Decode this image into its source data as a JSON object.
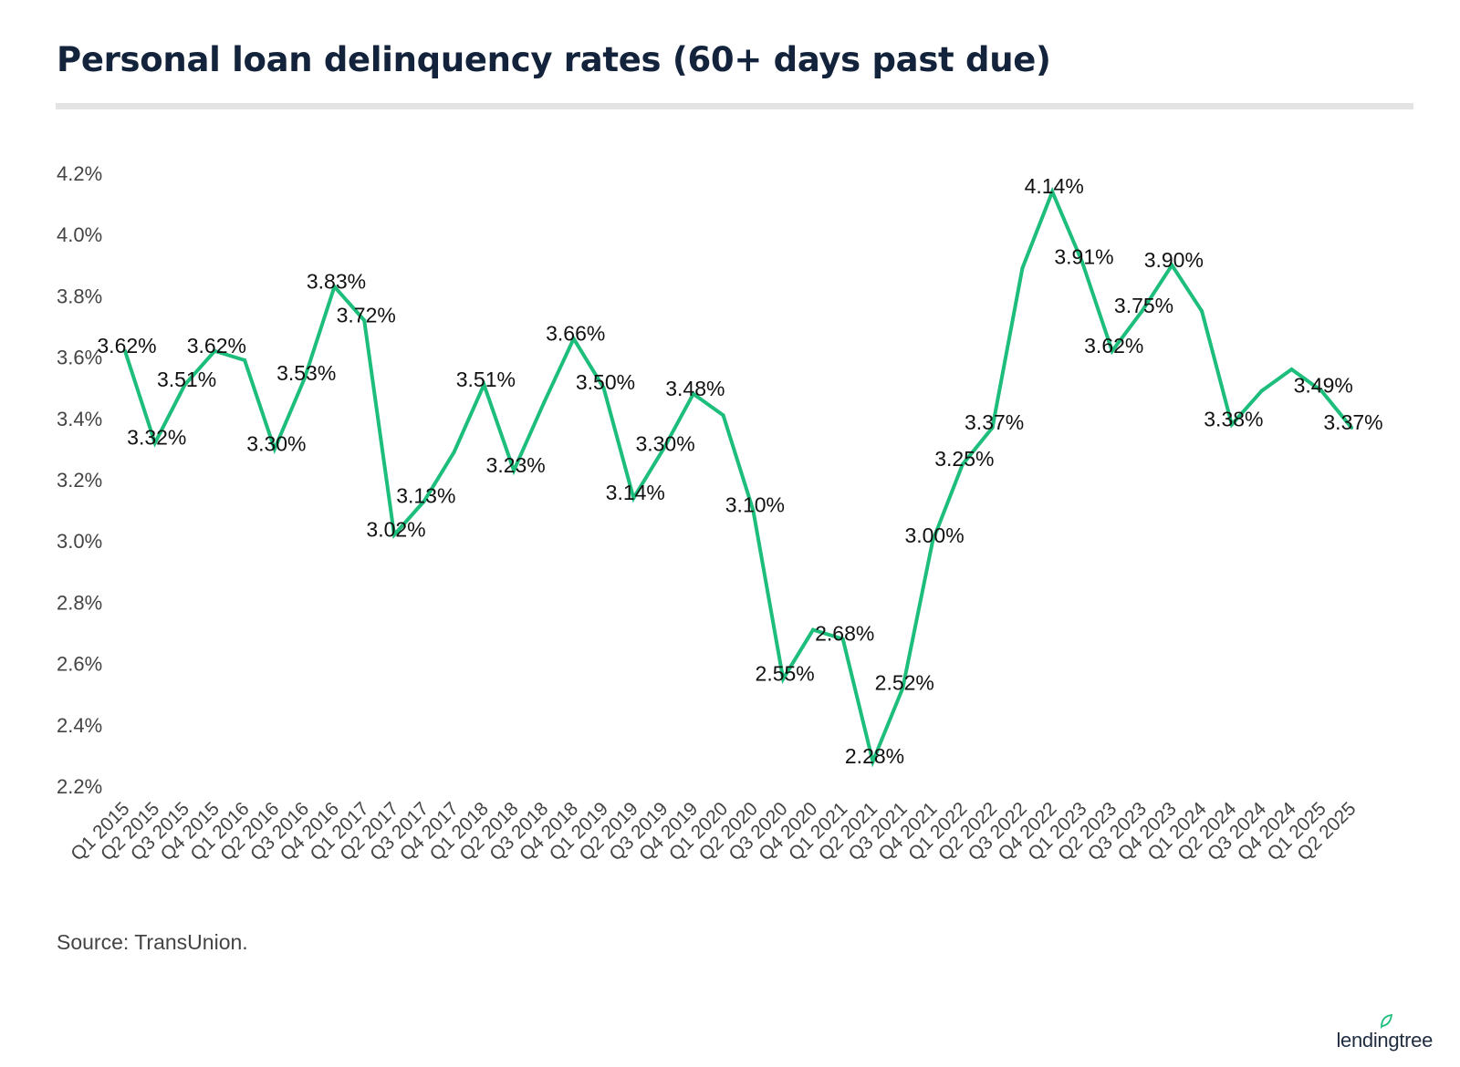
{
  "title": "Personal loan delinquency rates (60+ days past due)",
  "source": "Source: TransUnion.",
  "brand": "lendingtree",
  "icons": {
    "brand_leaf": "leaf-icon"
  },
  "colors": {
    "line": "#1dbd7c",
    "title": "#13233b",
    "rule": "#e3e3e3",
    "text": "#222222"
  },
  "chart_data": {
    "type": "line",
    "title": "Personal loan delinquency rates (60+ days past due)",
    "xlabel": "",
    "ylabel": "",
    "ylim": [
      2.2,
      4.2
    ],
    "yticks": [
      "4.2%",
      "4.0%",
      "3.8%",
      "3.6%",
      "3.4%",
      "3.2%",
      "3.0%",
      "2.8%",
      "2.6%",
      "2.4%",
      "2.2%"
    ],
    "ytick_values": [
      4.2,
      4.0,
      3.8,
      3.6,
      3.4,
      3.2,
      3.0,
      2.8,
      2.6,
      2.4,
      2.2
    ],
    "grid": false,
    "legend": "none",
    "categories": [
      "Q1 2015",
      "Q2 2015",
      "Q3 2015",
      "Q4 2015",
      "Q1 2016",
      "Q2 2016",
      "Q3 2016",
      "Q4 2016",
      "Q1 2017",
      "Q2 2017",
      "Q3 2017",
      "Q4 2017",
      "Q1 2018",
      "Q2 2018",
      "Q3 2018",
      "Q4 2018",
      "Q1 2019",
      "Q2 2019",
      "Q3 2019",
      "Q4 2019",
      "Q1 2020",
      "Q2 2020",
      "Q3 2020",
      "Q4 2020",
      "Q1 2021",
      "Q2 2021",
      "Q3 2021",
      "Q4 2021",
      "Q1 2022",
      "Q2 2022",
      "Q3 2022",
      "Q4 2022",
      "Q1 2023",
      "Q2 2023",
      "Q3 2023",
      "Q4 2023",
      "Q1 2024",
      "Q2 2024",
      "Q3 2024",
      "Q4 2024",
      "Q1 2025",
      "Q2 2025"
    ],
    "values": [
      3.62,
      3.32,
      3.51,
      3.62,
      3.59,
      3.3,
      3.53,
      3.83,
      3.72,
      3.02,
      3.13,
      3.29,
      3.51,
      3.23,
      3.45,
      3.66,
      3.5,
      3.14,
      3.3,
      3.48,
      3.41,
      3.1,
      2.55,
      2.71,
      2.68,
      2.28,
      2.52,
      3.0,
      3.25,
      3.37,
      3.89,
      4.14,
      3.91,
      3.62,
      3.75,
      3.9,
      3.75,
      3.38,
      3.49,
      3.56,
      3.49,
      3.37
    ],
    "labels": [
      {
        "i": 0,
        "text": "3.62%"
      },
      {
        "i": 1,
        "text": "3.32%"
      },
      {
        "i": 2,
        "text": "3.51%"
      },
      {
        "i": 3,
        "text": "3.62%"
      },
      {
        "i": 5,
        "text": "3.30%"
      },
      {
        "i": 6,
        "text": "3.53%"
      },
      {
        "i": 7,
        "text": "3.83%"
      },
      {
        "i": 8,
        "text": "3.72%"
      },
      {
        "i": 9,
        "text": "3.02%"
      },
      {
        "i": 10,
        "text": "3.13%"
      },
      {
        "i": 12,
        "text": "3.51%"
      },
      {
        "i": 13,
        "text": "3.23%"
      },
      {
        "i": 15,
        "text": "3.66%"
      },
      {
        "i": 16,
        "text": "3.50%"
      },
      {
        "i": 17,
        "text": "3.14%"
      },
      {
        "i": 18,
        "text": "3.30%"
      },
      {
        "i": 19,
        "text": "3.48%"
      },
      {
        "i": 21,
        "text": "3.10%"
      },
      {
        "i": 22,
        "text": "2.55%"
      },
      {
        "i": 24,
        "text": "2.68%"
      },
      {
        "i": 25,
        "text": "2.28%"
      },
      {
        "i": 26,
        "text": "2.52%"
      },
      {
        "i": 27,
        "text": "3.00%"
      },
      {
        "i": 28,
        "text": "3.25%"
      },
      {
        "i": 29,
        "text": "3.37%"
      },
      {
        "i": 31,
        "text": "4.14%"
      },
      {
        "i": 32,
        "text": "3.91%"
      },
      {
        "i": 33,
        "text": "3.62%"
      },
      {
        "i": 34,
        "text": "3.75%"
      },
      {
        "i": 35,
        "text": "3.90%"
      },
      {
        "i": 37,
        "text": "3.38%"
      },
      {
        "i": 40,
        "text": "3.49%"
      },
      {
        "i": 41,
        "text": "3.37%"
      }
    ]
  }
}
